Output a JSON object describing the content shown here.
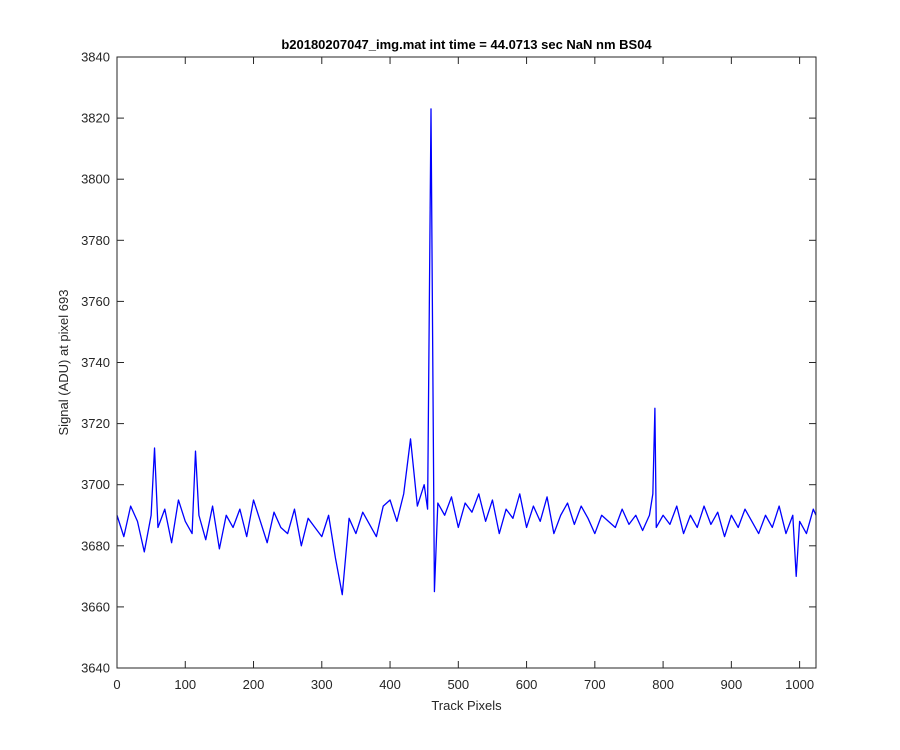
{
  "chart_data": {
    "type": "line",
    "title": "b20180207047_img.mat int time = 44.0713 sec  NaN nm BS04",
    "xlabel": "Track Pixels",
    "ylabel": "Signal (ADU) at pixel 693",
    "xlim": [
      0,
      1024
    ],
    "ylim": [
      3640,
      3840
    ],
    "xticks": [
      0,
      100,
      200,
      300,
      400,
      500,
      600,
      700,
      800,
      900,
      1000
    ],
    "yticks": [
      3640,
      3660,
      3680,
      3700,
      3720,
      3740,
      3760,
      3780,
      3800,
      3820,
      3840
    ],
    "grid": false,
    "series": [
      {
        "color": "#0000ff",
        "x": [
          0,
          10,
          20,
          30,
          40,
          50,
          55,
          60,
          70,
          80,
          90,
          100,
          110,
          115,
          120,
          130,
          140,
          150,
          160,
          170,
          180,
          190,
          200,
          210,
          220,
          230,
          240,
          250,
          260,
          270,
          280,
          290,
          300,
          310,
          320,
          330,
          340,
          350,
          360,
          370,
          380,
          390,
          400,
          410,
          420,
          430,
          440,
          450,
          455,
          460,
          465,
          470,
          480,
          490,
          500,
          510,
          520,
          530,
          540,
          550,
          560,
          570,
          580,
          590,
          600,
          610,
          620,
          630,
          640,
          650,
          660,
          670,
          680,
          690,
          700,
          710,
          720,
          730,
          740,
          750,
          760,
          770,
          780,
          785,
          788,
          790,
          800,
          810,
          820,
          830,
          840,
          850,
          860,
          870,
          880,
          890,
          900,
          910,
          920,
          930,
          940,
          950,
          960,
          970,
          980,
          990,
          995,
          1000,
          1010,
          1020,
          1024
        ],
        "y": [
          3690,
          3683,
          3693,
          3688,
          3678,
          3690,
          3712,
          3686,
          3692,
          3681,
          3695,
          3688,
          3684,
          3711,
          3690,
          3682,
          3693,
          3679,
          3690,
          3686,
          3692,
          3683,
          3695,
          3688,
          3681,
          3691,
          3686,
          3684,
          3692,
          3680,
          3689,
          3686,
          3683,
          3690,
          3676,
          3664,
          3689,
          3684,
          3691,
          3687,
          3683,
          3693,
          3695,
          3688,
          3697,
          3715,
          3693,
          3700,
          3692,
          3823,
          3665,
          3694,
          3690,
          3696,
          3686,
          3694,
          3691,
          3697,
          3688,
          3695,
          3684,
          3692,
          3689,
          3697,
          3686,
          3693,
          3688,
          3696,
          3684,
          3690,
          3694,
          3687,
          3693,
          3689,
          3684,
          3690,
          3688,
          3686,
          3692,
          3687,
          3690,
          3685,
          3690,
          3697,
          3725,
          3686,
          3690,
          3687,
          3693,
          3684,
          3690,
          3686,
          3693,
          3687,
          3691,
          3683,
          3690,
          3686,
          3692,
          3688,
          3684,
          3690,
          3686,
          3693,
          3684,
          3690,
          3670,
          3688,
          3684,
          3692,
          3690
        ]
      }
    ]
  }
}
